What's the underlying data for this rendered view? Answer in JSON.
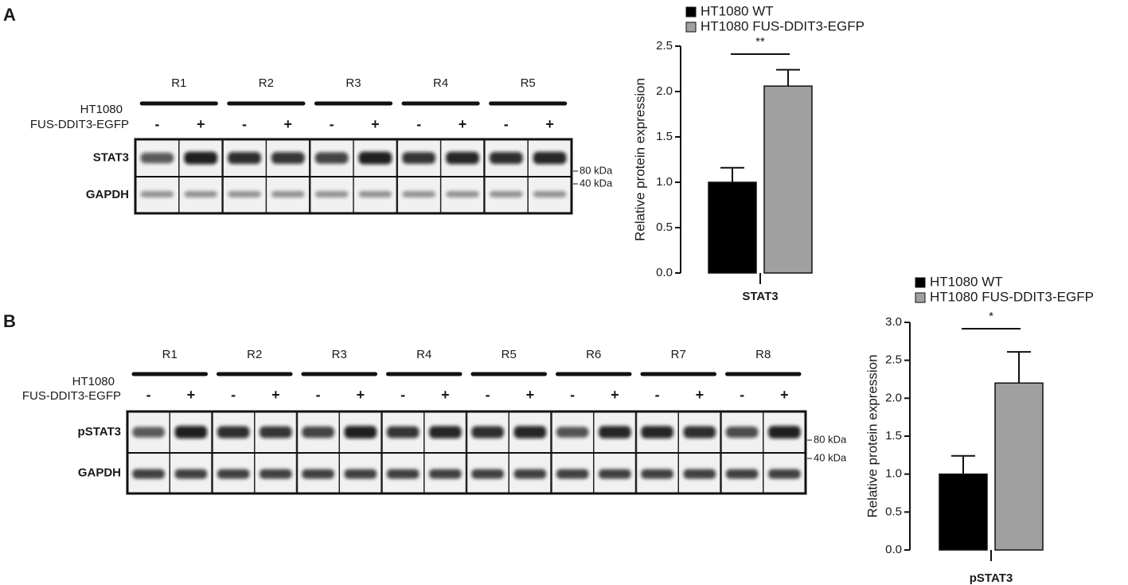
{
  "panel_labels": [
    "A",
    "B"
  ],
  "blots": [
    {
      "replicates": [
        "R1",
        "R2",
        "R3",
        "R4",
        "R5"
      ],
      "cell_line": "HT1080",
      "construct": "FUS-DDIT3-EGFP",
      "lane_signs": [
        "-",
        "+"
      ],
      "rows": [
        "STAT3",
        "GAPDH"
      ],
      "markers": [
        "80 kDa",
        "40 kDa"
      ]
    },
    {
      "replicates": [
        "R1",
        "R2",
        "R3",
        "R4",
        "R5",
        "R6",
        "R7",
        "R8"
      ],
      "cell_line": "HT1080",
      "construct": "FUS-DDIT3-EGFP",
      "lane_signs": [
        "-",
        "+"
      ],
      "rows": [
        "pSTAT3",
        "GAPDH"
      ],
      "markers": [
        "80 kDa",
        "40 kDa"
      ]
    }
  ],
  "chart_data": [
    {
      "type": "bar",
      "y_label": "Relative protein expression",
      "categories": [
        "STAT3"
      ],
      "annotation": "**",
      "series": [
        {
          "name": "HT1080 WT",
          "color": "#000000",
          "values": [
            1.0
          ],
          "errors": [
            0.16
          ]
        },
        {
          "name": "HT1080 FUS-DDIT3-EGFP",
          "color": "#a0a0a1",
          "values": [
            2.06
          ],
          "errors": [
            0.18
          ]
        }
      ],
      "ylim": [
        0,
        2.5
      ],
      "yticks": [
        {
          "value": 0,
          "label": "0.0"
        },
        0.5,
        {
          "value": 1,
          "label": "1.0"
        },
        1.5,
        {
          "value": 2,
          "label": "2.0"
        },
        2.5
      ]
    },
    {
      "type": "bar",
      "y_label": "Relative protein expression",
      "categories": [
        "pSTAT3"
      ],
      "annotation": "*",
      "series": [
        {
          "name": "HT1080 WT",
          "color": "#000000",
          "values": [
            1.0
          ],
          "errors": [
            0.24
          ]
        },
        {
          "name": "HT1080 FUS-DDIT3-EGFP",
          "color": "#a0a0a1",
          "values": [
            2.2
          ],
          "errors": [
            0.41
          ]
        }
      ],
      "ylim": [
        0,
        3
      ],
      "yticks": [
        {
          "value": 0,
          "label": "0.0"
        },
        0.5,
        {
          "value": 1,
          "label": "1.0"
        },
        1.5,
        {
          "value": 2,
          "label": "2.0"
        },
        2.5,
        {
          "value": 3,
          "label": "3.0"
        }
      ]
    }
  ]
}
